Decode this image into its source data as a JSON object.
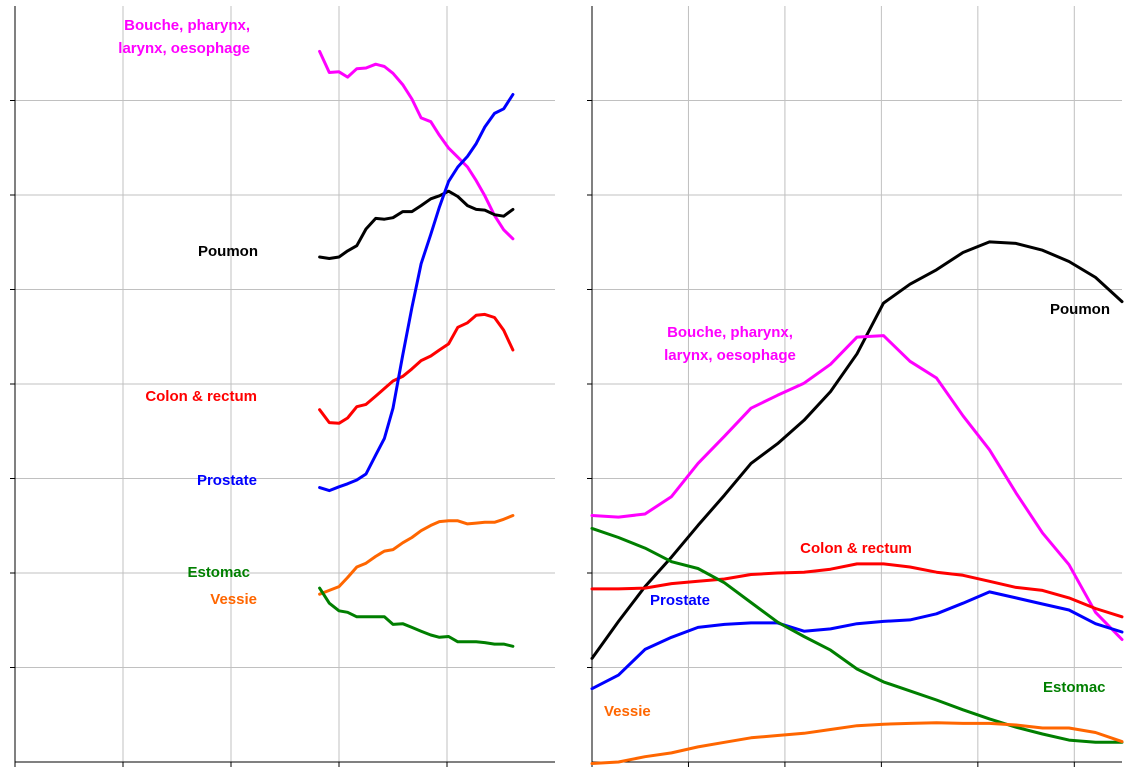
{
  "chart_data": [
    {
      "type": "line",
      "panel": "left",
      "title": "",
      "xlabel": "",
      "ylabel": "",
      "xlim": [
        0,
        100
      ],
      "ylim": [
        0,
        100
      ],
      "xticks": [
        0,
        20,
        40,
        60,
        80
      ],
      "yticks": [
        12.5,
        25,
        37.5,
        50,
        62.5,
        75,
        87.5
      ],
      "grid": true,
      "series": [
        {
          "name": "Bouche, pharynx, larynx, oesophage",
          "color": "#ff00ff",
          "label_lines": [
            "Bouche, pharynx,",
            "larynx, oesophage"
          ],
          "x": [
            56.4,
            58.2,
            60,
            61.6,
            63.3,
            65,
            66.8,
            68.4,
            70,
            71.8,
            73.5,
            75.2,
            77,
            78.6,
            80.3,
            82,
            83.8,
            85.4,
            87,
            88.8,
            90.5,
            92.2
          ],
          "y": [
            94,
            91.2,
            91.3,
            90.6,
            91.7,
            91.8,
            92.3,
            92,
            91.1,
            89.6,
            87.7,
            85.2,
            84.7,
            82.9,
            81.2,
            80,
            78.7,
            76.9,
            74.9,
            72.3,
            70.4,
            69.2
          ]
        },
        {
          "name": "Poumon",
          "color": "#000000",
          "label_lines": [
            "Poumon"
          ],
          "x": [
            56.4,
            58.2,
            60,
            61.6,
            63.3,
            65,
            66.8,
            68.4,
            70,
            71.8,
            73.5,
            75.2,
            77,
            78.6,
            80.3,
            82,
            83.8,
            85.4,
            87,
            88.8,
            90.5,
            92.2
          ],
          "y": [
            66.8,
            66.6,
            66.8,
            67.6,
            68.3,
            70.5,
            71.9,
            71.8,
            72,
            72.8,
            72.8,
            73.6,
            74.5,
            74.9,
            75.5,
            74.8,
            73.6,
            73.1,
            73,
            72.4,
            72.2,
            73.1
          ]
        },
        {
          "name": "Colon & rectum",
          "color": "#ff0000",
          "label_lines": [
            "Colon & rectum"
          ],
          "x": [
            56.4,
            58.2,
            60,
            61.6,
            63.3,
            65,
            66.8,
            68.4,
            70,
            71.8,
            73.5,
            75.2,
            77,
            78.6,
            80.3,
            82,
            83.8,
            85.4,
            87,
            88.8,
            90.5,
            92.2
          ],
          "y": [
            46.6,
            44.9,
            44.8,
            45.5,
            47,
            47.3,
            48.4,
            49.4,
            50.4,
            51,
            52,
            53.1,
            53.7,
            54.5,
            55.3,
            57.5,
            58.1,
            59.1,
            59.2,
            58.8,
            57.1,
            54.5
          ]
        },
        {
          "name": "Prostate",
          "color": "#0000ff",
          "label_lines": [
            "Prostate"
          ],
          "x": [
            56.4,
            58.2,
            60,
            61.6,
            63.3,
            65,
            66.8,
            68.4,
            70,
            71.8,
            73.5,
            75.2,
            77,
            78.6,
            80.3,
            82,
            83.8,
            85.4,
            87,
            88.8,
            90.5,
            92.2
          ],
          "y": [
            36.3,
            35.9,
            36.4,
            36.8,
            37.3,
            38.1,
            40.6,
            42.8,
            46.8,
            53.8,
            60.1,
            65.9,
            69.8,
            73.4,
            76.8,
            78.7,
            80.1,
            81.8,
            84,
            85.8,
            86.4,
            88.3
          ]
        },
        {
          "name": "Vessie",
          "color": "#ff6600",
          "label_lines": [
            "Vessie"
          ],
          "x": [
            56.4,
            58.2,
            60,
            61.6,
            63.3,
            65,
            66.8,
            68.4,
            70,
            71.8,
            73.5,
            75.2,
            77,
            78.6,
            80.3,
            82,
            83.8,
            85.4,
            87,
            88.8,
            90.5,
            92.2
          ],
          "y": [
            22.2,
            22.7,
            23.2,
            24.4,
            25.8,
            26.3,
            27.2,
            27.9,
            28.1,
            29,
            29.7,
            30.6,
            31.3,
            31.8,
            31.9,
            31.9,
            31.5,
            31.6,
            31.7,
            31.7,
            32.1,
            32.6
          ]
        },
        {
          "name": "Estomac",
          "color": "#007f00",
          "label_lines": [
            "Estomac"
          ],
          "x": [
            56.4,
            58.2,
            60,
            61.6,
            63.3,
            65,
            66.8,
            68.4,
            70,
            71.8,
            73.5,
            75.2,
            77,
            78.6,
            80.3,
            82,
            83.8,
            85.4,
            87,
            88.8,
            90.5,
            92.2
          ],
          "y": [
            23,
            21,
            20,
            19.8,
            19.2,
            19.2,
            19.2,
            19.2,
            18.2,
            18.3,
            17.8,
            17.3,
            16.8,
            16.5,
            16.6,
            15.9,
            15.9,
            15.9,
            15.8,
            15.6,
            15.6,
            15.3
          ]
        }
      ]
    },
    {
      "type": "line",
      "panel": "right",
      "title": "",
      "xlabel": "",
      "ylabel": "",
      "xlim": [
        0,
        100
      ],
      "ylim": [
        0,
        100
      ],
      "xticks": [
        0,
        18.2,
        36.4,
        54.6,
        72.8,
        91
      ],
      "yticks": [
        12.5,
        25,
        37.5,
        50,
        62.5,
        75,
        87.5
      ],
      "grid": true,
      "series": [
        {
          "name": "Poumon",
          "color": "#000000",
          "label_lines": [
            "Poumon"
          ],
          "x": [
            0,
            5,
            10,
            15,
            20,
            25,
            30,
            35,
            40,
            45,
            50,
            55,
            60,
            65,
            70,
            75,
            80,
            85,
            90,
            95,
            100
          ],
          "y": [
            13.7,
            18.6,
            23.2,
            27.1,
            31.3,
            35.3,
            39.5,
            42.1,
            45.2,
            49,
            54,
            60.7,
            63.2,
            65.1,
            67.4,
            68.8,
            68.6,
            67.7,
            66.2,
            64.1,
            60.9
          ]
        },
        {
          "name": "Bouche, pharynx, larynx, oesophage",
          "color": "#ff00ff",
          "label_lines": [
            "Bouche, pharynx,",
            "larynx, oesophage"
          ],
          "x": [
            0,
            5,
            10,
            15,
            20,
            25,
            30,
            35,
            40,
            45,
            50,
            55,
            60,
            65,
            70,
            75,
            80,
            85,
            90,
            95,
            100
          ],
          "y": [
            32.6,
            32.4,
            32.8,
            35.1,
            39.5,
            43.1,
            46.8,
            48.5,
            50.1,
            52.6,
            56.2,
            56.4,
            53,
            50.8,
            45.8,
            41.3,
            35.6,
            30.3,
            26.1,
            19.8,
            16.2
          ]
        },
        {
          "name": "Colon & rectum",
          "color": "#ff0000",
          "label_lines": [
            "Colon & rectum"
          ],
          "x": [
            0,
            5,
            10,
            15,
            20,
            25,
            30,
            35,
            40,
            45,
            50,
            55,
            60,
            65,
            70,
            75,
            80,
            85,
            90,
            95,
            100
          ],
          "y": [
            22.9,
            22.9,
            23,
            23.6,
            23.9,
            24.2,
            24.8,
            25,
            25.1,
            25.5,
            26.2,
            26.2,
            25.8,
            25.1,
            24.7,
            23.9,
            23.1,
            22.7,
            21.7,
            20.3,
            19.2
          ]
        },
        {
          "name": "Prostate",
          "color": "#0000ff",
          "label_lines": [
            "Prostate"
          ],
          "x": [
            0,
            5,
            10,
            15,
            20,
            25,
            30,
            35,
            40,
            45,
            50,
            55,
            60,
            65,
            70,
            75,
            80,
            85,
            90,
            95,
            100
          ],
          "y": [
            9.7,
            11.5,
            14.9,
            16.5,
            17.8,
            18.2,
            18.4,
            18.4,
            17.3,
            17.6,
            18.3,
            18.6,
            18.8,
            19.6,
            21,
            22.5,
            21.7,
            20.9,
            20.1,
            18.3,
            17.2
          ]
        },
        {
          "name": "Estomac",
          "color": "#007f00",
          "label_lines": [
            "Estomac"
          ],
          "x": [
            0,
            5,
            10,
            15,
            20,
            25,
            30,
            35,
            40,
            45,
            50,
            55,
            60,
            65,
            70,
            75,
            80,
            85,
            90,
            95,
            100
          ],
          "y": [
            30.9,
            29.7,
            28.3,
            26.5,
            25.6,
            23.7,
            21.1,
            18.5,
            16.6,
            14.8,
            12.3,
            10.6,
            9.4,
            8.2,
            6.9,
            5.7,
            4.6,
            3.7,
            2.9,
            2.6,
            2.6
          ]
        },
        {
          "name": "Vessie",
          "color": "#ff6600",
          "label_lines": [
            "Vessie"
          ],
          "x": [
            0,
            5,
            10,
            15,
            20,
            25,
            30,
            35,
            40,
            45,
            50,
            55,
            60,
            65,
            70,
            75,
            80,
            85,
            90,
            95,
            100
          ],
          "y": [
            -0.2,
            0,
            0.7,
            1.2,
            2,
            2.6,
            3.2,
            3.5,
            3.8,
            4.3,
            4.8,
            5,
            5.1,
            5.2,
            5.1,
            5.1,
            4.9,
            4.5,
            4.5,
            3.9,
            2.7
          ]
        }
      ]
    }
  ]
}
